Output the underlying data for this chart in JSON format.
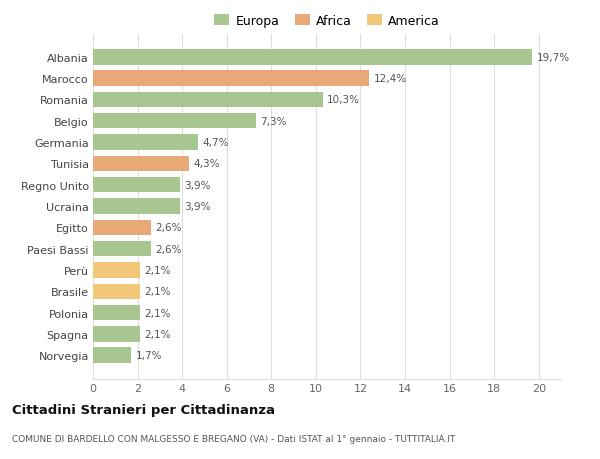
{
  "countries": [
    "Norvegia",
    "Spagna",
    "Polonia",
    "Brasile",
    "Perù",
    "Paesi Bassi",
    "Egitto",
    "Ucraina",
    "Regno Unito",
    "Tunisia",
    "Germania",
    "Belgio",
    "Romania",
    "Marocco",
    "Albania"
  ],
  "values": [
    1.7,
    2.1,
    2.1,
    2.1,
    2.1,
    2.6,
    2.6,
    3.9,
    3.9,
    4.3,
    4.7,
    7.3,
    10.3,
    12.4,
    19.7
  ],
  "labels": [
    "1,7%",
    "2,1%",
    "2,1%",
    "2,1%",
    "2,1%",
    "2,6%",
    "2,6%",
    "3,9%",
    "3,9%",
    "4,3%",
    "4,7%",
    "7,3%",
    "10,3%",
    "12,4%",
    "19,7%"
  ],
  "colors": [
    "#a8c68f",
    "#a8c68f",
    "#a8c68f",
    "#f0c878",
    "#f0c878",
    "#a8c68f",
    "#e8a878",
    "#a8c68f",
    "#a8c68f",
    "#e8a878",
    "#a8c68f",
    "#a8c68f",
    "#a8c68f",
    "#e8a878",
    "#a8c68f"
  ],
  "legend_labels": [
    "Europa",
    "Africa",
    "America"
  ],
  "legend_colors": [
    "#a8c68f",
    "#e8a878",
    "#f0c878"
  ],
  "title": "Cittadini Stranieri per Cittadinanza",
  "subtitle": "COMUNE DI BARDELLO CON MALGESSO E BREGANO (VA) - Dati ISTAT al 1° gennaio - TUTTITALIA.IT",
  "xlim": [
    0,
    21
  ],
  "xticks": [
    0,
    2,
    4,
    6,
    8,
    10,
    12,
    14,
    16,
    18,
    20
  ],
  "background_color": "#ffffff",
  "grid_color": "#dddddd",
  "bar_height": 0.72
}
